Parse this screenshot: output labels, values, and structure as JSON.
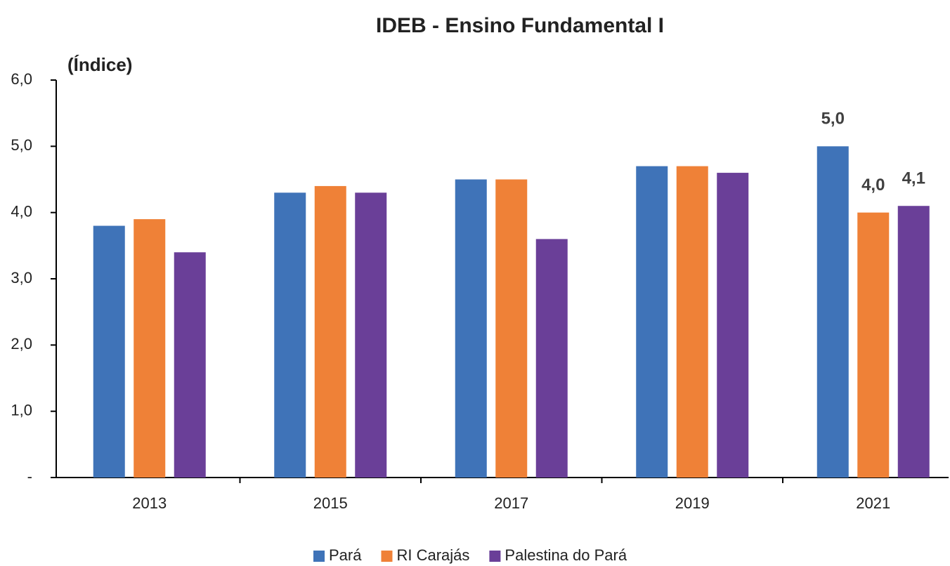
{
  "chart_data": {
    "type": "bar",
    "title": "IDEB - Ensino Fundamental I",
    "y_label": "(Índice)",
    "categories": [
      "2013",
      "2015",
      "2017",
      "2019",
      "2021"
    ],
    "series": [
      {
        "name": "Pará",
        "color": "#3f73b8",
        "values": [
          3.8,
          4.3,
          4.5,
          4.7,
          5.0
        ],
        "value_labels": [
          null,
          null,
          null,
          null,
          "5,0"
        ]
      },
      {
        "name": "RI Carajás",
        "color": "#ef8137",
        "values": [
          3.9,
          4.4,
          4.5,
          4.7,
          4.0
        ],
        "value_labels": [
          null,
          null,
          null,
          null,
          "4,0"
        ]
      },
      {
        "name": "Palestina do Pará",
        "color": "#6a3f98",
        "values": [
          3.4,
          4.3,
          3.6,
          4.6,
          4.1
        ],
        "value_labels": [
          null,
          null,
          null,
          null,
          "4,1"
        ]
      }
    ],
    "ylim": [
      0,
      6
    ],
    "yticks": [
      {
        "value": 0,
        "label": "-"
      },
      {
        "value": 1,
        "label": "1,0"
      },
      {
        "value": 2,
        "label": "2,0"
      },
      {
        "value": 3,
        "label": "3,0"
      },
      {
        "value": 4,
        "label": "4,0"
      },
      {
        "value": 5,
        "label": "5,0"
      },
      {
        "value": 6,
        "label": "6,0"
      }
    ],
    "grid": false,
    "legend": "bottom"
  }
}
